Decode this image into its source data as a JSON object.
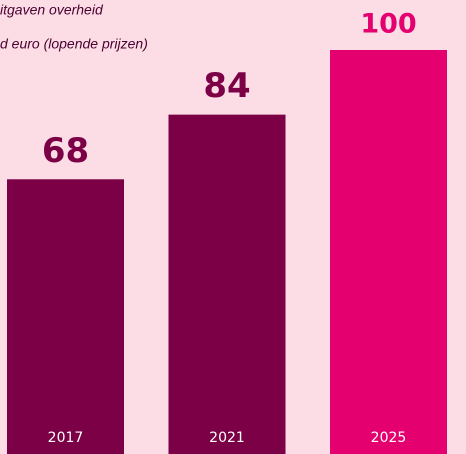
{
  "chart_data": {
    "type": "bar",
    "title_lines": [
      "itgaven overheid",
      "d euro (lopende prijzen)"
    ],
    "categories": [
      "2017",
      "2021",
      "2025"
    ],
    "values": [
      68,
      84,
      100
    ],
    "colors": [
      "#7b0046",
      "#7b0046",
      "#e4006f"
    ],
    "ylim": [
      0,
      100
    ]
  }
}
